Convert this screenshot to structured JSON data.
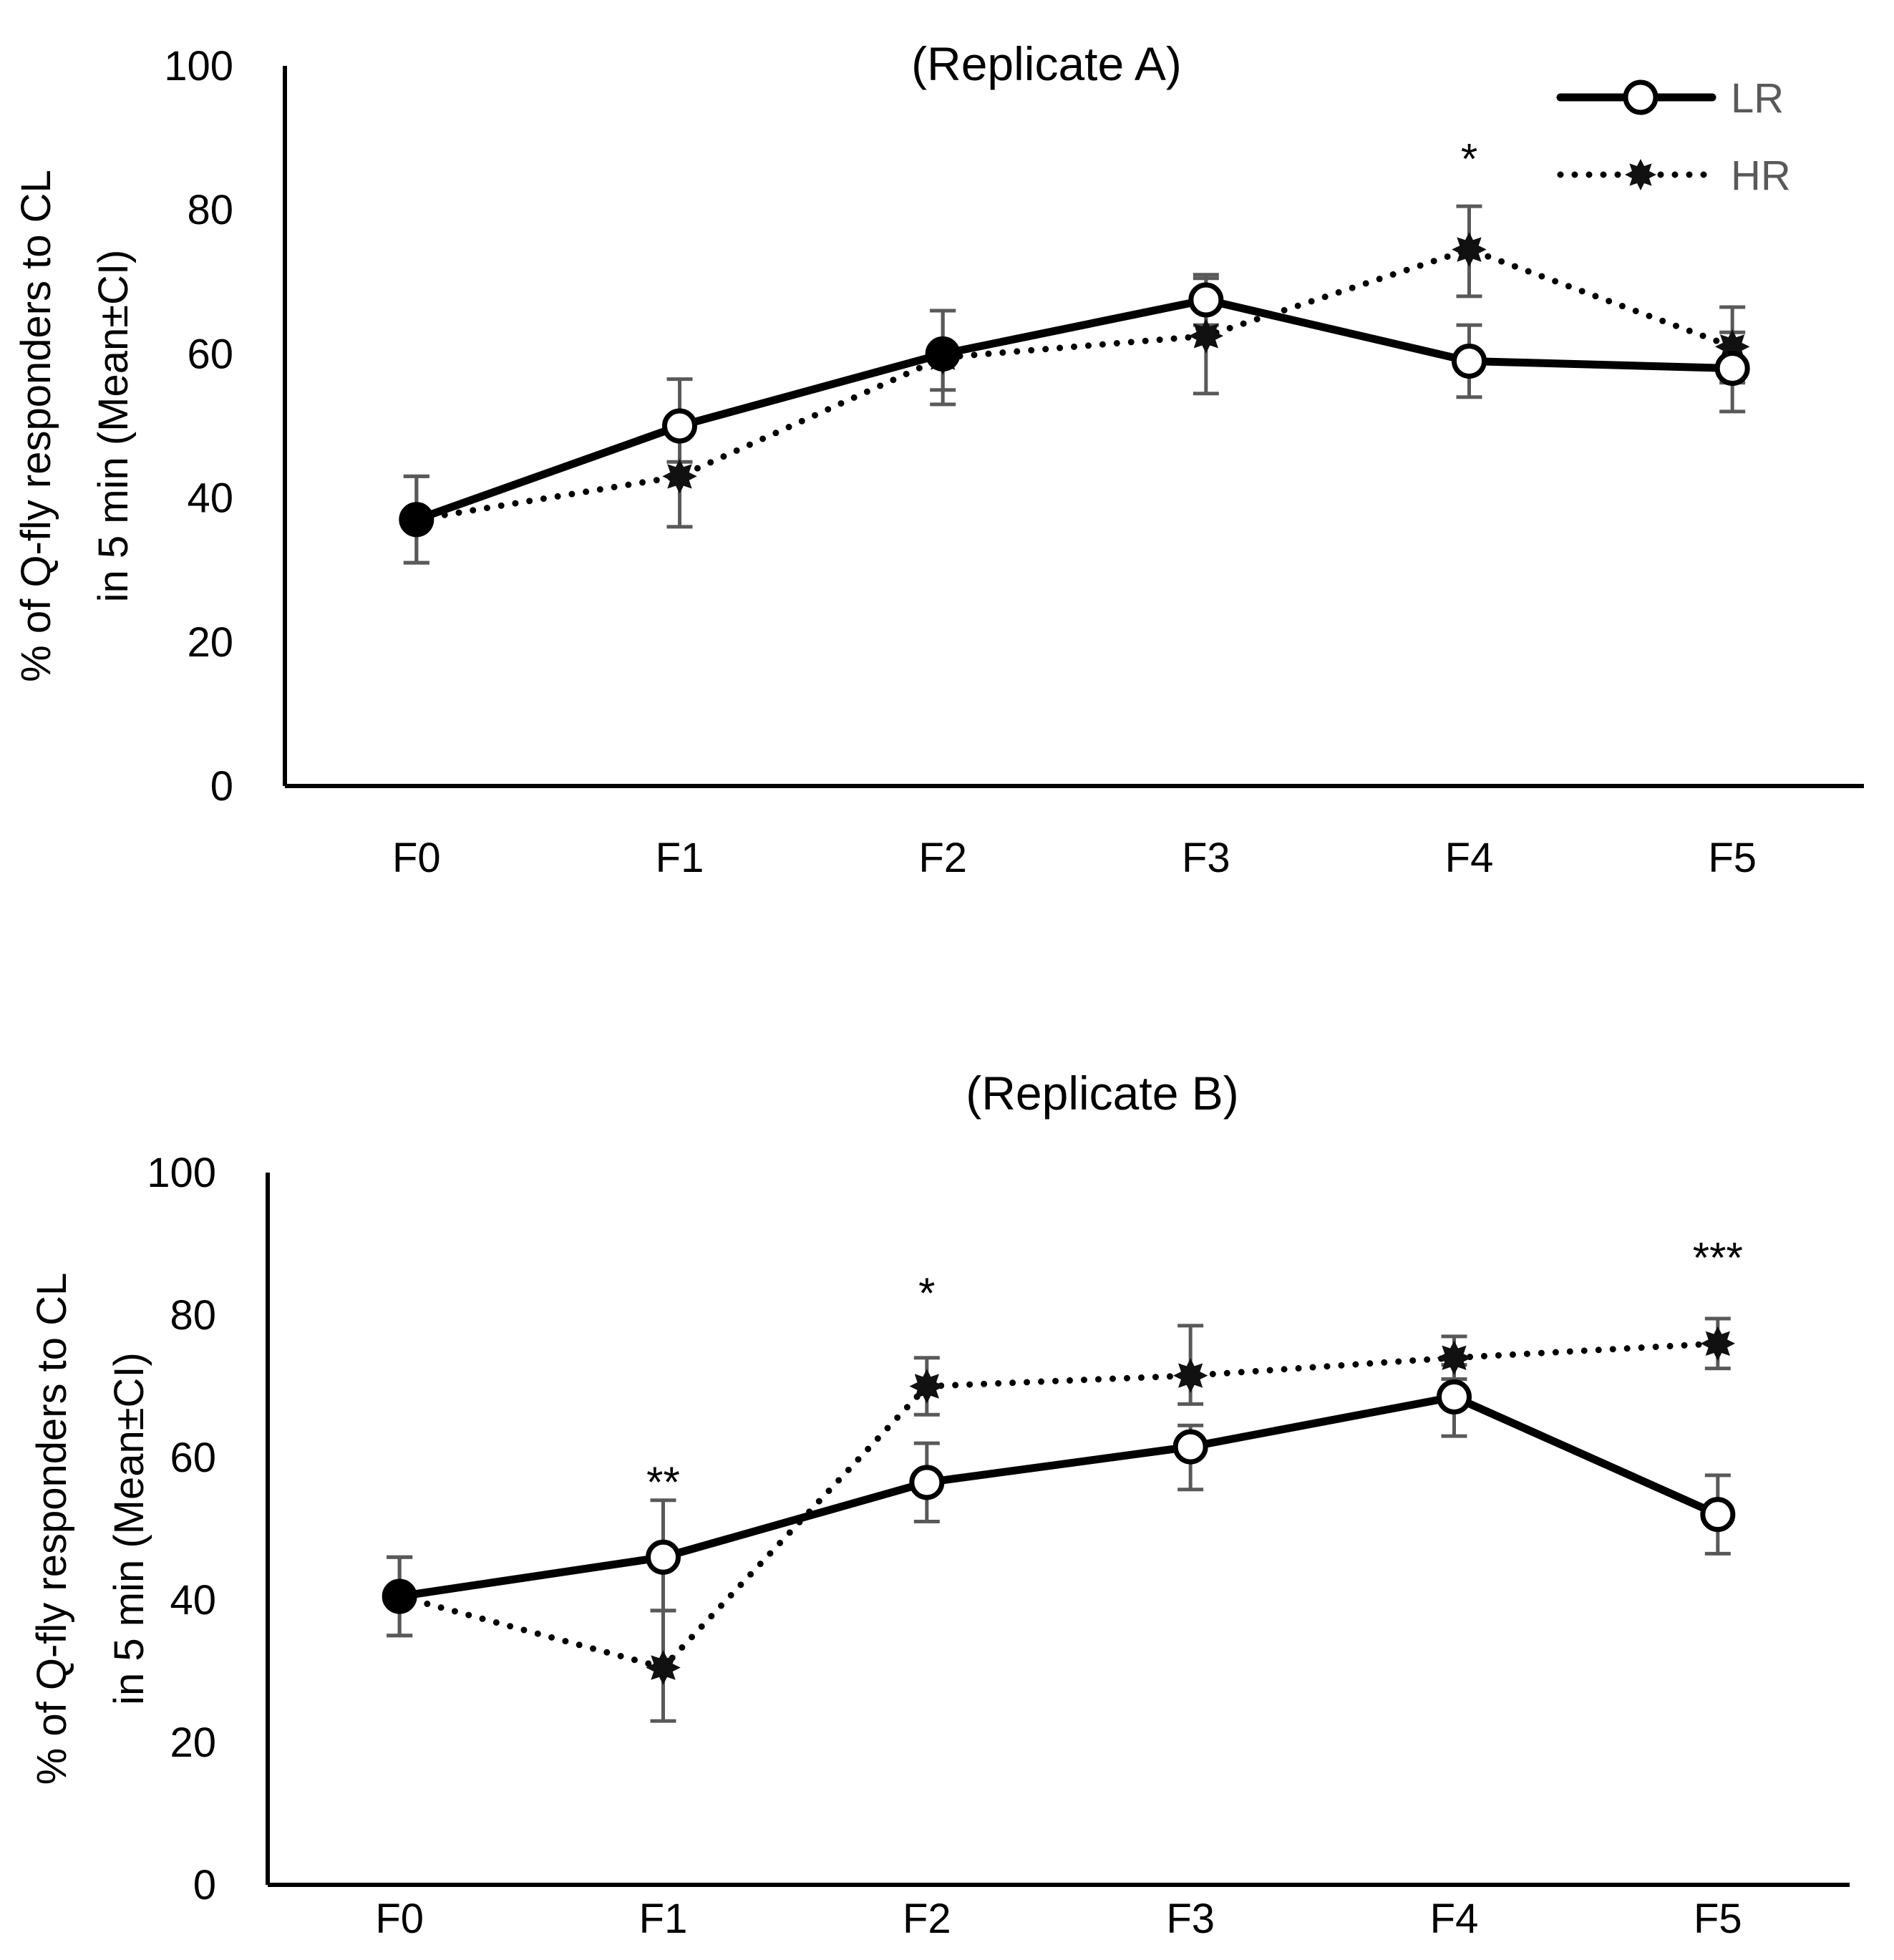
{
  "chart_data": [
    {
      "type": "line",
      "title": "(Replicate A)",
      "xlabel": "",
      "ylabel": [
        "% of Q-fly responders to CL",
        "in 5 min (Mean±CI)"
      ],
      "categories": [
        "F0",
        "F1",
        "F2",
        "F3",
        "F4",
        "F5"
      ],
      "ylim": [
        0,
        100
      ],
      "yticks": [
        "0",
        "20",
        "40",
        "60",
        "80",
        "100"
      ],
      "grid": false,
      "legend_placement": "top-right",
      "series": [
        {
          "name": "LR",
          "style": "solid",
          "marker": "open-circle",
          "values": [
            37,
            50,
            60,
            67.5,
            59,
            58
          ],
          "ci_low": [
            31,
            45,
            55,
            64,
            54,
            52
          ],
          "ci_high": [
            43,
            56.5,
            66,
            71,
            64,
            63
          ]
        },
        {
          "name": "HR",
          "style": "dotted",
          "marker": "filled-star",
          "values": [
            37,
            43,
            59.5,
            62.5,
            74.5,
            61
          ],
          "ci_low": [
            31,
            36,
            53,
            54.5,
            68,
            56
          ],
          "ci_high": [
            43,
            50,
            66,
            70.5,
            80.5,
            66.5
          ]
        }
      ],
      "annotations": [
        {
          "category": "F4",
          "text": "*",
          "y": 88
        }
      ]
    },
    {
      "type": "line",
      "title": "(Replicate B)",
      "xlabel": "",
      "ylabel": [
        "% of Q-fly responders to CL",
        "in 5 min (Mean±CI)"
      ],
      "categories": [
        "F0",
        "F1",
        "F2",
        "F3",
        "F4",
        "F5"
      ],
      "ylim": [
        0,
        100
      ],
      "yticks": [
        "0",
        "20",
        "40",
        "60",
        "80",
        "100"
      ],
      "grid": false,
      "legend_placement": "none",
      "series": [
        {
          "name": "LR",
          "style": "solid",
          "marker": "open-circle",
          "values": [
            40.5,
            46,
            56.5,
            61.5,
            68.5,
            52
          ],
          "ci_low": [
            35,
            38.5,
            51,
            55.5,
            63,
            46.5
          ],
          "ci_high": [
            46,
            54,
            62,
            64.5,
            73,
            57.5
          ]
        },
        {
          "name": "HR",
          "style": "dotted",
          "marker": "filled-star",
          "values": [
            40.5,
            30.5,
            70,
            71.5,
            74,
            76
          ],
          "ci_low": [
            35,
            23,
            66,
            67.5,
            71,
            72.5
          ],
          "ci_high": [
            46,
            38.5,
            74,
            78.5,
            77,
            79.5
          ]
        }
      ],
      "annotations": [
        {
          "category": "F1",
          "text": "**",
          "y": 57.5
        },
        {
          "category": "F2",
          "text": "*",
          "y": 84
        },
        {
          "category": "F5",
          "text": "***",
          "y": 89
        }
      ]
    }
  ],
  "colors": {
    "line": "#000000",
    "error_bar": "#595959",
    "legend_text": "#595959"
  }
}
